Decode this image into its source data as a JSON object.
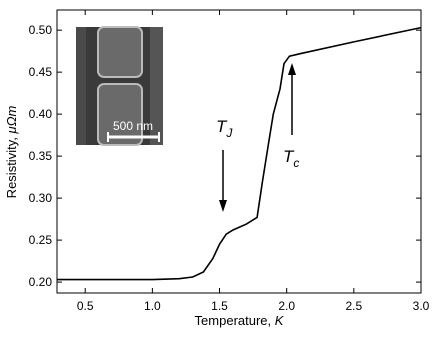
{
  "chart_data": {
    "type": "line",
    "x_label": {
      "text": "Temperature,",
      "unit": "K"
    },
    "y_label": {
      "text": "Resistivity,",
      "unit": "μΩm"
    },
    "series": [
      {
        "color": "#000000",
        "x": [
          0.29,
          1.0,
          1.2,
          1.3,
          1.38,
          1.45,
          1.5,
          1.55,
          1.6,
          1.7,
          1.78,
          1.82,
          1.87,
          1.9,
          1.95,
          1.98,
          2.02,
          2.1,
          2.5,
          3.0
        ],
        "values": [
          0.203,
          0.203,
          0.204,
          0.206,
          0.212,
          0.228,
          0.245,
          0.257,
          0.262,
          0.269,
          0.277,
          0.32,
          0.37,
          0.4,
          0.43,
          0.46,
          0.469,
          0.472,
          0.486,
          0.503
        ]
      }
    ],
    "xlim": [
      0.29,
      3.0
    ],
    "xticks": [
      0.5,
      {
        "value": 1,
        "label": "1.0"
      },
      1.5,
      {
        "value": 2,
        "label": "2.0"
      },
      2.5,
      {
        "value": 3,
        "label": "3.0"
      }
    ],
    "ylim": [
      0.187,
      0.524
    ],
    "yticks": [
      {
        "value": 0.2,
        "label": "0.20"
      },
      0.25,
      {
        "value": 0.3,
        "label": "0.30"
      },
      0.35,
      {
        "value": 0.4,
        "label": "0.40"
      },
      0.45,
      {
        "value": 0.5,
        "label": "0.50"
      }
    ],
    "annotations": [
      {
        "text": "T",
        "subscript": "J"
      },
      {
        "text": "T",
        "subscript": "c"
      }
    ],
    "inset_label": "500 nm"
  }
}
